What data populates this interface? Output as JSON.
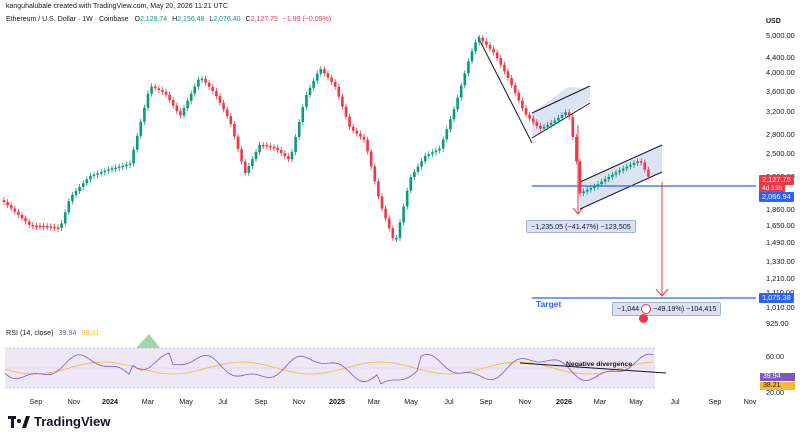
{
  "header": {
    "creator": "kanguhalubale created with TradingView.com, May 20, 2026 11:21 UTC",
    "symbol": "Ethereum / U.S. Dollar · 1W · Coinbase",
    "ohlc_labels": {
      "o": "O",
      "h": "H",
      "l": "L",
      "c": "C"
    },
    "open": "2,129.74",
    "high": "2,156.48",
    "low": "2,076.40",
    "close": "2,127.75",
    "change": "−1.99 (−0.09%)",
    "currency": "USD"
  },
  "price_axis": {
    "ticks": [
      "5,000.00",
      "4,400.00",
      "4,000.00",
      "3,600.00",
      "3,200.00",
      "2,800.00",
      "2,500.00",
      "2,200.00",
      "1,860.00",
      "1,650.00",
      "1,490.00",
      "1,330.00",
      "1,210.00",
      "1,110.00",
      "1,010.00",
      "925.00"
    ],
    "last_price": "2,127.75",
    "countdown": "4d 13h",
    "support_price": "2,066.94",
    "target_price": "1,075.38"
  },
  "rsi": {
    "label": "RSI (14, close)",
    "value_rsi": "39.94",
    "value_ma": "38.21",
    "axis_ticks": [
      "60.00",
      "20.00"
    ],
    "annotation": "Negative divergence"
  },
  "time_axis": {
    "labels": [
      "Sep",
      "Nov",
      "2024",
      "Mar",
      "May",
      "Jul",
      "Sep",
      "Nov",
      "2025",
      "Mar",
      "May",
      "Jul",
      "Sep",
      "Nov",
      "2026",
      "Mar",
      "May",
      "Jul",
      "Sep",
      "Nov"
    ],
    "bold": [
      false,
      false,
      true,
      false,
      false,
      false,
      false,
      false,
      true,
      false,
      false,
      false,
      false,
      false,
      true,
      false,
      false,
      false,
      false,
      false
    ]
  },
  "annotations": {
    "drop_measure": "−1,235.05 (−41.47%) −123,505",
    "target_measure": "−1,044",
    "target_measure_rest": "−49.19%) −104,415",
    "target_label": "Target"
  },
  "colors": {
    "up": "#089981",
    "down": "#f23645",
    "line_blue": "#2962ff",
    "rsi_line": "#7e57c2",
    "rsi_ma": "#f5b82e",
    "channel_fill": "#d3dcf0"
  },
  "footer": {
    "brand": "TradingView"
  }
}
